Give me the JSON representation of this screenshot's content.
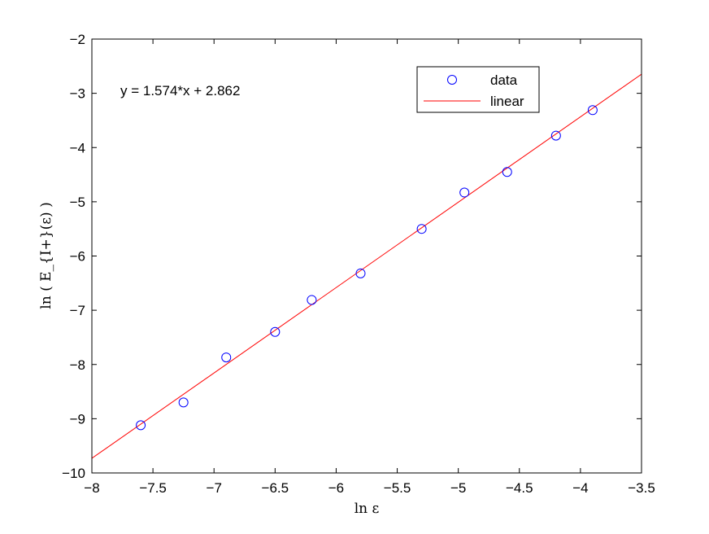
{
  "chart_data": {
    "type": "scatter",
    "xlabel": "ln ε",
    "ylabel": "ln ( E_{I+}(ε) )",
    "xlim": [
      -8,
      -3.5
    ],
    "ylim": [
      -10,
      -2
    ],
    "x_ticks": [
      -8,
      -7.5,
      -7,
      -6.5,
      -6,
      -5.5,
      -5,
      -4.5,
      -4,
      -3.5
    ],
    "y_ticks": [
      -10,
      -9,
      -8,
      -7,
      -6,
      -5,
      -4,
      -3,
      -2
    ],
    "x_tick_labels": [
      "−8",
      "−7.5",
      "−7",
      "−6.5",
      "−6",
      "−5.5",
      "−5",
      "−4.5",
      "−4",
      "−3.5"
    ],
    "y_tick_labels": [
      "−10",
      "−9",
      "−8",
      "−7",
      "−6",
      "−5",
      "−4",
      "−3",
      "−2"
    ],
    "grid": false,
    "annotation": "y = 1.574*x + 2.862",
    "legend": {
      "placement": "top-right",
      "entries": [
        "data",
        "linear"
      ]
    },
    "series": [
      {
        "name": "data",
        "kind": "scatter",
        "marker": "circle-open",
        "color": "#0000ff",
        "x": [
          -7.6,
          -7.25,
          -6.9,
          -6.5,
          -6.2,
          -5.8,
          -5.3,
          -4.95,
          -4.6,
          -4.2,
          -3.9
        ],
        "y": [
          -9.12,
          -8.7,
          -7.87,
          -7.4,
          -6.81,
          -6.32,
          -5.5,
          -4.83,
          -4.45,
          -3.78,
          -3.31
        ]
      },
      {
        "name": "linear",
        "kind": "line",
        "color": "#ff0000",
        "slope": 1.574,
        "intercept": 2.862
      }
    ]
  }
}
